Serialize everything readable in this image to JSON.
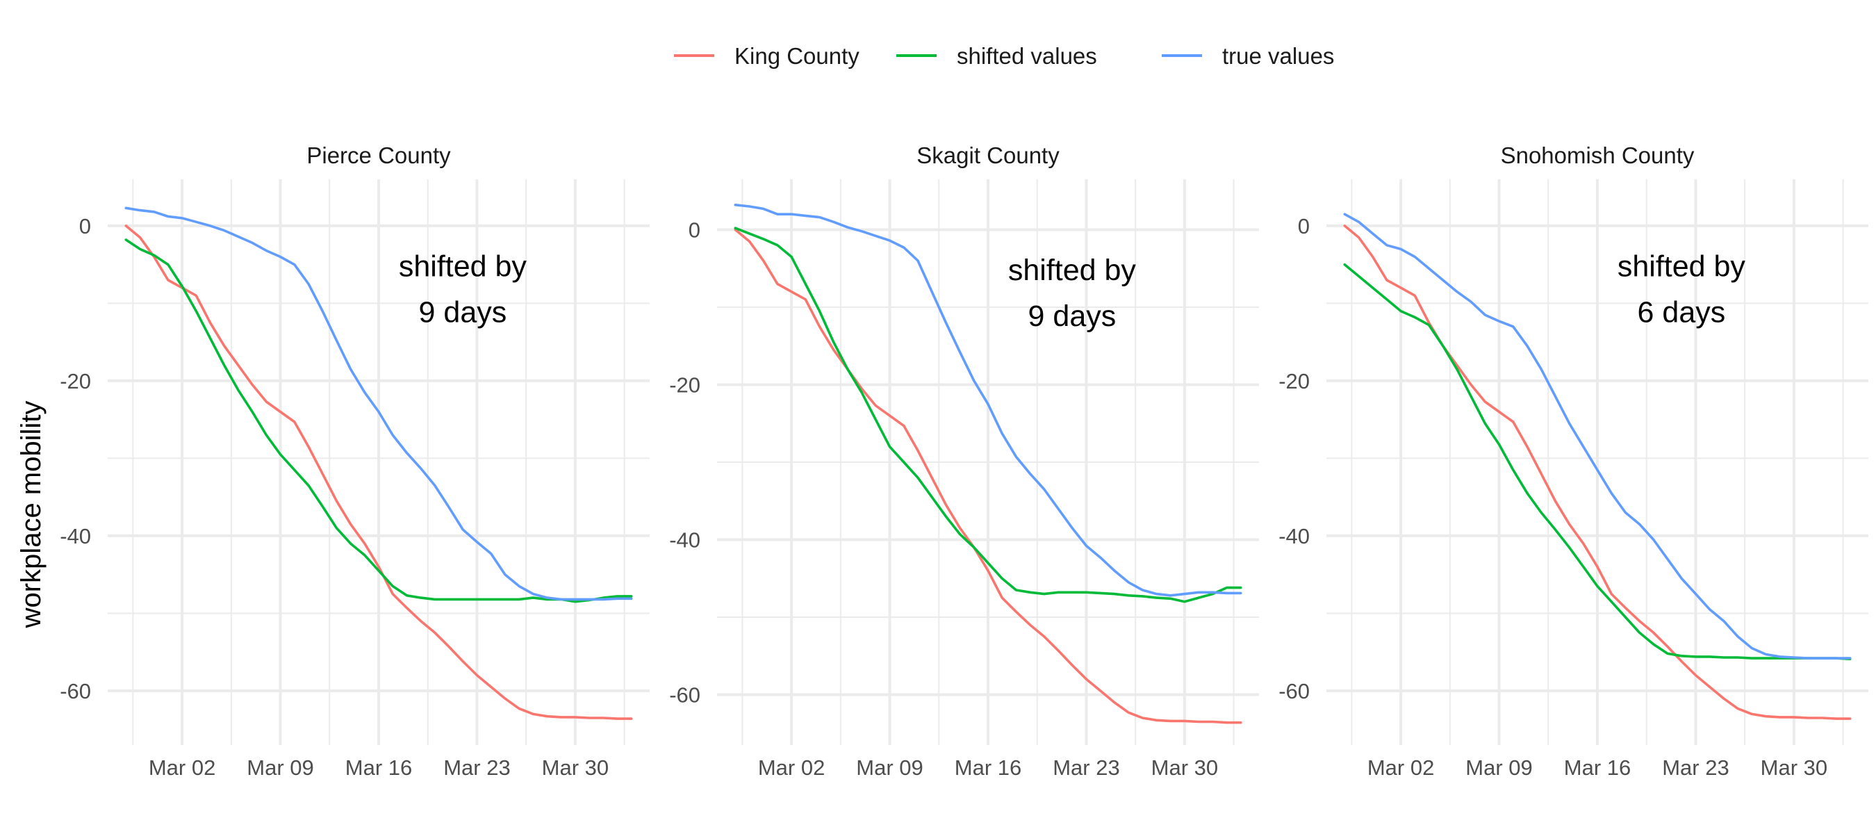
{
  "chart_data": {
    "type": "line",
    "ylabel": "workplace mobility",
    "legend": {
      "position": "top",
      "entries": [
        {
          "label": "King County",
          "color": "#F8766D"
        },
        {
          "label": "shifted values",
          "color": "#00BA38"
        },
        {
          "label": "true values",
          "color": "#619CFF"
        }
      ]
    },
    "x_dates": [
      "2020-02-27",
      "2020-02-28",
      "2020-02-29",
      "2020-03-01",
      "2020-03-02",
      "2020-03-03",
      "2020-03-04",
      "2020-03-05",
      "2020-03-06",
      "2020-03-07",
      "2020-03-08",
      "2020-03-09",
      "2020-03-10",
      "2020-03-11",
      "2020-03-12",
      "2020-03-13",
      "2020-03-14",
      "2020-03-15",
      "2020-03-16",
      "2020-03-17",
      "2020-03-18",
      "2020-03-19",
      "2020-03-20",
      "2020-03-21",
      "2020-03-22",
      "2020-03-23",
      "2020-03-24",
      "2020-03-25",
      "2020-03-26",
      "2020-03-27",
      "2020-03-28",
      "2020-03-29",
      "2020-03-30",
      "2020-03-31",
      "2020-04-01",
      "2020-04-02",
      "2020-04-03"
    ],
    "x_ticks": [
      {
        "date": "2020-03-02",
        "label": "Mar 02"
      },
      {
        "date": "2020-03-09",
        "label": "Mar 09"
      },
      {
        "date": "2020-03-16",
        "label": "Mar 16"
      },
      {
        "date": "2020-03-23",
        "label": "Mar 23"
      },
      {
        "date": "2020-03-30",
        "label": "Mar 30"
      }
    ],
    "y_ticks": [
      {
        "value": 0,
        "label": "0"
      },
      {
        "value": -20,
        "label": "-20"
      },
      {
        "value": -40,
        "label": "-40"
      },
      {
        "value": -60,
        "label": "-60"
      }
    ],
    "grid": true,
    "panels": [
      {
        "title": "Pierce County",
        "annotation": [
          "shifted by",
          "9 days"
        ],
        "ylim": [
          -67,
          6
        ],
        "series": [
          {
            "name": "King County",
            "color": "#F8766D",
            "values": [
              0,
              -1.5,
              -4,
              -7,
              -8,
              -9,
              -12.5,
              -15.5,
              -18,
              -20.5,
              -22.7,
              -24,
              -25.3,
              -28.5,
              -32,
              -35.5,
              -38.5,
              -41,
              -44,
              -47.5,
              -49.3,
              -51,
              -52.5,
              -54.3,
              -56.2,
              -58,
              -59.5,
              -61,
              -62.3,
              -63,
              -63.3,
              -63.4,
              -63.4,
              -63.5,
              -63.5,
              -63.6,
              -63.6
            ]
          },
          {
            "name": "shifted values",
            "color": "#00BA38",
            "values": [
              -1.8,
              -3,
              -3.8,
              -5,
              -7.8,
              -11,
              -14.5,
              -18,
              -21.2,
              -24,
              -27,
              -29.5,
              -31.5,
              -33.5,
              -36.2,
              -39,
              -41,
              -42.5,
              -44.5,
              -46.5,
              -47.7,
              -48,
              -48.2,
              -48.2,
              -48.2,
              -48.2,
              -48.2,
              -48.2,
              -48.2,
              -48,
              -48.2,
              -48.2,
              -48.5,
              -48.3,
              -48,
              -47.8,
              -47.8
            ]
          },
          {
            "name": "true values",
            "color": "#619CFF",
            "values": [
              2.3,
              2,
              1.8,
              1.2,
              1,
              0.5,
              0,
              -0.6,
              -1.4,
              -2.2,
              -3.2,
              -4,
              -5,
              -7.5,
              -11,
              -14.8,
              -18.5,
              -21.5,
              -24,
              -27,
              -29.3,
              -31.3,
              -33.5,
              -36.3,
              -39.2,
              -40.8,
              -42.3,
              -45,
              -46.5,
              -47.5,
              -48,
              -48.2,
              -48.2,
              -48.2,
              -48.2,
              -48.1,
              -48.1
            ]
          }
        ]
      },
      {
        "title": "Skagit County",
        "annotation": [
          "shifted by",
          "9 days"
        ],
        "ylim": [
          -66.5,
          6.5
        ],
        "series": [
          {
            "name": "King County",
            "color": "#F8766D",
            "values": [
              0,
              -1.5,
              -4,
              -7,
              -8,
              -9,
              -12.5,
              -15.5,
              -18,
              -20.5,
              -22.7,
              -24,
              -25.3,
              -28.5,
              -32,
              -35.5,
              -38.5,
              -41,
              -44,
              -47.5,
              -49.3,
              -51,
              -52.5,
              -54.3,
              -56.2,
              -58,
              -59.5,
              -61,
              -62.3,
              -63,
              -63.3,
              -63.4,
              -63.4,
              -63.5,
              -63.5,
              -63.6,
              -63.6
            ]
          },
          {
            "name": "shifted values",
            "color": "#00BA38",
            "values": [
              0.2,
              -0.5,
              -1.2,
              -2,
              -3.5,
              -7,
              -10.5,
              -14.5,
              -18,
              -21,
              -24.5,
              -28,
              -30,
              -32,
              -34.5,
              -37,
              -39.3,
              -41,
              -43,
              -45,
              -46.5,
              -46.8,
              -47,
              -46.8,
              -46.8,
              -46.8,
              -46.9,
              -47,
              -47.2,
              -47.3,
              -47.5,
              -47.6,
              -48,
              -47.5,
              -47,
              -46.2,
              -46.2
            ]
          },
          {
            "name": "true values",
            "color": "#619CFF",
            "values": [
              3.2,
              3,
              2.7,
              2,
              2,
              1.8,
              1.6,
              1,
              0.3,
              -0.2,
              -0.8,
              -1.4,
              -2.3,
              -4,
              -8,
              -12,
              -15.8,
              -19.5,
              -22.5,
              -26.3,
              -29.3,
              -31.5,
              -33.5,
              -36,
              -38.5,
              -40.8,
              -42.3,
              -44,
              -45.5,
              -46.5,
              -47,
              -47.2,
              -47,
              -46.8,
              -46.8,
              -46.9,
              -46.9
            ]
          }
        ]
      },
      {
        "title": "Snohomish County",
        "annotation": [
          "shifted by",
          "6 days"
        ],
        "ylim": [
          -67,
          6
        ],
        "series": [
          {
            "name": "King County",
            "color": "#F8766D",
            "values": [
              0,
              -1.5,
              -4,
              -7,
              -8,
              -9,
              -12.5,
              -15.5,
              -18,
              -20.5,
              -22.7,
              -24,
              -25.3,
              -28.5,
              -32,
              -35.5,
              -38.5,
              -41,
              -44,
              -47.5,
              -49.3,
              -51,
              -52.5,
              -54.3,
              -56.2,
              -58,
              -59.5,
              -61,
              -62.3,
              -63,
              -63.3,
              -63.4,
              -63.4,
              -63.5,
              -63.5,
              -63.6,
              -63.6
            ]
          },
          {
            "name": "shifted values",
            "color": "#00BA38",
            "values": [
              -5,
              -6.5,
              -8,
              -9.5,
              -11,
              -11.8,
              -12.8,
              -15.5,
              -18.5,
              -22,
              -25.5,
              -28.2,
              -31.5,
              -34.5,
              -37,
              -39.2,
              -41.5,
              -44,
              -46.5,
              -48.5,
              -50.5,
              -52.5,
              -54,
              -55.2,
              -55.5,
              -55.6,
              -55.6,
              -55.7,
              -55.7,
              -55.8,
              -55.8,
              -55.8,
              -55.8,
              -55.8,
              -55.8,
              -55.8,
              -55.9
            ]
          },
          {
            "name": "true values",
            "color": "#619CFF",
            "values": [
              1.5,
              0.5,
              -1,
              -2.5,
              -3,
              -4,
              -5.5,
              -7,
              -8.5,
              -9.8,
              -11.5,
              -12.3,
              -13,
              -15.5,
              -18.5,
              -22,
              -25.5,
              -28.5,
              -31.5,
              -34.5,
              -37,
              -38.5,
              -40.5,
              -43,
              -45.5,
              -47.5,
              -49.5,
              -51,
              -53,
              -54.5,
              -55.3,
              -55.6,
              -55.7,
              -55.8,
              -55.8,
              -55.8,
              -55.8
            ]
          }
        ]
      }
    ]
  }
}
